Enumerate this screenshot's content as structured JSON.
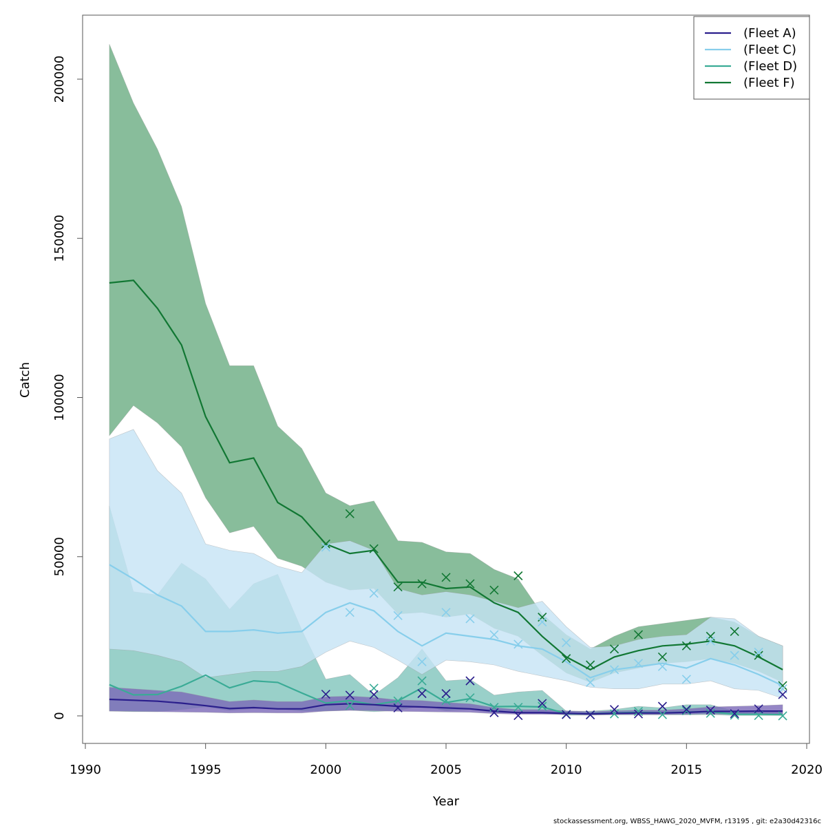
{
  "chart_data": {
    "type": "line",
    "title": "",
    "xlabel": "Year",
    "ylabel": "Catch",
    "xlim": [
      1990,
      2020
    ],
    "ylim": [
      0,
      200000
    ],
    "x_ticks": [
      1990,
      1995,
      2000,
      2005,
      2010,
      2015,
      2020
    ],
    "x_tick_labels": [
      "1990",
      "1995",
      "2000",
      "2005",
      "2010",
      "2015",
      "2020"
    ],
    "y_ticks": [
      0,
      50000,
      100000,
      150000,
      200000
    ],
    "y_tick_labels": [
      "0",
      "50000",
      "100000",
      "150000",
      "200000"
    ],
    "grid": false,
    "legend_position": "top-right",
    "footer": "stockassessment.org, WBSS_HAWG_2020_MVFM, r13195 , git: e2a30d42316c",
    "years": [
      1991,
      1992,
      1993,
      1994,
      1995,
      1996,
      1997,
      1998,
      1999,
      2000,
      2001,
      2002,
      2003,
      2004,
      2005,
      2006,
      2007,
      2008,
      2009,
      2010,
      2011,
      2012,
      2013,
      2014,
      2015,
      2016,
      2017,
      2018,
      2019
    ],
    "series": [
      {
        "name": "(Fleet A)",
        "color": "#2a1e8c",
        "band_color": "#7b68b8",
        "fit": [
          5200,
          4900,
          4600,
          4000,
          3200,
          2300,
          2600,
          2200,
          2200,
          3500,
          3800,
          3500,
          3000,
          2800,
          2500,
          2200,
          1500,
          1000,
          1000,
          800,
          600,
          800,
          900,
          900,
          1100,
          1400,
          1400,
          1500,
          1500
        ],
        "lower": [
          1500,
          1400,
          1300,
          1200,
          1100,
          900,
          1000,
          900,
          900,
          1500,
          1700,
          1600,
          1400,
          1300,
          1200,
          1100,
          700,
          500,
          500,
          400,
          300,
          400,
          400,
          400,
          500,
          600,
          500,
          500,
          500
        ],
        "upper": [
          9000,
          8500,
          8000,
          7500,
          6000,
          4500,
          5000,
          4500,
          4500,
          6000,
          6200,
          5800,
          5000,
          4800,
          4200,
          3800,
          2600,
          2000,
          2000,
          1600,
          1300,
          1600,
          1800,
          1800,
          2200,
          2800,
          3000,
          3200,
          3500
        ],
        "observed": [
          null,
          null,
          null,
          null,
          null,
          null,
          null,
          null,
          null,
          6800,
          6500,
          6700,
          2500,
          7000,
          7000,
          11000,
          1000,
          100,
          3900,
          400,
          300,
          2000,
          600,
          3000,
          2000,
          1800,
          700,
          2200,
          6700
        ]
      },
      {
        "name": "(Fleet C)",
        "color": "#87ceeb",
        "band_color": "#c5e4f5",
        "fit": [
          47500,
          43000,
          38000,
          34500,
          26500,
          26500,
          27000,
          26000,
          26500,
          32500,
          35500,
          33000,
          26500,
          22000,
          26000,
          25000,
          24000,
          22000,
          21000,
          17000,
          12000,
          14500,
          15500,
          16500,
          15000,
          18000,
          16000,
          13000,
          9500
        ],
        "lower": [
          21000,
          20500,
          19000,
          17000,
          12000,
          13000,
          14000,
          14000,
          15500,
          20000,
          23500,
          21500,
          17500,
          13000,
          17500,
          17000,
          16000,
          14000,
          12500,
          11000,
          9000,
          8500,
          8500,
          10000,
          10000,
          11000,
          8500,
          8000,
          5500
        ],
        "upper": [
          87000,
          90000,
          77000,
          70000,
          54000,
          52000,
          51000,
          47000,
          45000,
          54000,
          55000,
          52000,
          40000,
          38000,
          39000,
          38000,
          36000,
          34000,
          36000,
          28000,
          21500,
          22000,
          24000,
          25000,
          25500,
          31000,
          30500,
          25000,
          22000
        ],
        "observed": [
          null,
          null,
          null,
          null,
          null,
          null,
          null,
          null,
          null,
          53000,
          32500,
          38500,
          31500,
          17000,
          32500,
          30500,
          25500,
          22500,
          29500,
          23000,
          10500,
          14500,
          16500,
          15500,
          11500,
          23500,
          19000,
          20000,
          8500
        ]
      },
      {
        "name": "(Fleet D)",
        "color": "#3aab96",
        "band_color": "#7fc4bc",
        "fit": [
          9800,
          6600,
          6700,
          9300,
          12800,
          8800,
          11000,
          10500,
          7200,
          4000,
          4800,
          3500,
          4700,
          8800,
          4200,
          5400,
          2900,
          3000,
          2800,
          700,
          700,
          900,
          1100,
          900,
          1200,
          1300,
          500,
          500,
          400
        ],
        "lower": [
          1500,
          1300,
          1300,
          2000,
          2800,
          1700,
          2300,
          2200,
          1500,
          1500,
          1800,
          1300,
          1700,
          3200,
          1600,
          2000,
          1000,
          1000,
          1000,
          200,
          200,
          300,
          300,
          300,
          300,
          400,
          100,
          100,
          100
        ],
        "upper": [
          66000,
          39000,
          38000,
          48000,
          43000,
          33500,
          41500,
          44500,
          27000,
          11500,
          13000,
          6500,
          12000,
          21000,
          11000,
          11500,
          6500,
          7500,
          8000,
          1500,
          1500,
          2000,
          3000,
          2500,
          3500,
          3500,
          1500,
          1500,
          1200
        ],
        "observed": [
          null,
          null,
          null,
          null,
          null,
          null,
          null,
          null,
          null,
          null,
          3200,
          8700,
          4700,
          11000,
          4800,
          5700,
          2700,
          2700,
          3000,
          500,
          300,
          600,
          1400,
          400,
          1600,
          800,
          200,
          100,
          0
        ]
      },
      {
        "name": "(Fleet F)",
        "color": "#117733",
        "band_color": "#6aac82",
        "fit": [
          136000,
          136800,
          128000,
          116500,
          94000,
          79500,
          81000,
          67000,
          62500,
          54000,
          51000,
          52000,
          42000,
          42000,
          40000,
          40500,
          35500,
          32500,
          25000,
          18500,
          14500,
          18500,
          20500,
          22000,
          22500,
          23500,
          22000,
          18500,
          14500
        ],
        "lower": [
          88000,
          97500,
          92000,
          84500,
          68500,
          57500,
          59500,
          49500,
          47000,
          42000,
          39500,
          40000,
          32000,
          32500,
          31000,
          32000,
          27500,
          25000,
          19000,
          13500,
          10500,
          13500,
          15000,
          16500,
          17000,
          18000,
          16500,
          14000,
          10500
        ],
        "upper": [
          211000,
          192500,
          178000,
          160000,
          129500,
          110000,
          110000,
          91000,
          84000,
          70000,
          66000,
          67500,
          55000,
          54500,
          51500,
          51000,
          46000,
          43000,
          32000,
          25500,
          21000,
          25000,
          28000,
          29000,
          30000,
          31000,
          29500,
          25000,
          22000
        ],
        "observed": [
          null,
          null,
          null,
          null,
          null,
          null,
          null,
          null,
          null,
          54000,
          63500,
          52500,
          40500,
          41500,
          43500,
          41500,
          39500,
          44000,
          31000,
          18000,
          16000,
          21000,
          25500,
          18500,
          22000,
          25000,
          26500,
          19000,
          9500
        ]
      }
    ]
  }
}
